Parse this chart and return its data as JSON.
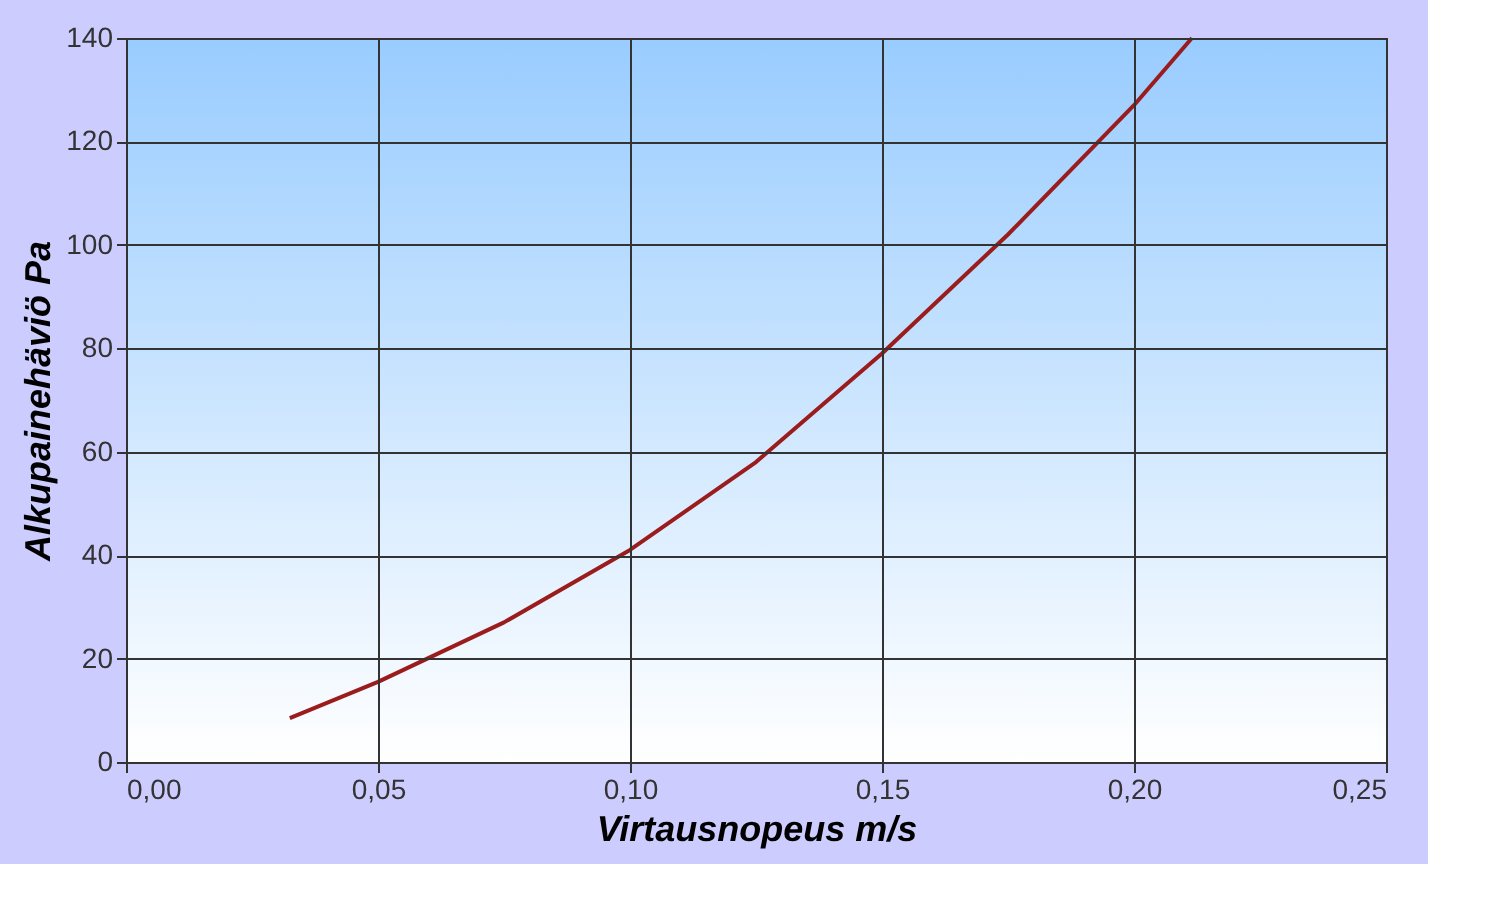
{
  "chart_data": {
    "type": "line",
    "xlabel": "Virtausnopeus m/s",
    "ylabel": "Alkupainehäviö Pa",
    "x": [
      0.0325,
      0.05,
      0.075,
      0.1,
      0.125,
      0.15,
      0.175,
      0.2,
      0.2115
    ],
    "series": [
      {
        "color": "#9b1c1c",
        "values": [
          8.5,
          15.5,
          27,
          41,
          58,
          79,
          102,
          127,
          140
        ]
      }
    ],
    "xlim": [
      0,
      0.25
    ],
    "ylim": [
      0,
      140
    ],
    "xticks": [
      {
        "value": 0,
        "label": "0,00"
      },
      {
        "value": 0.05,
        "label": "0,05"
      },
      {
        "value": 0.1,
        "label": "0,10"
      },
      {
        "value": 0.15,
        "label": "0,15"
      },
      {
        "value": 0.2,
        "label": "0,20"
      },
      {
        "value": 0.25,
        "label": "0,25"
      }
    ],
    "yticks": [
      0,
      20,
      40,
      60,
      80,
      100,
      120,
      140
    ],
    "grid": true,
    "marker": "none",
    "line_style": "solid"
  }
}
